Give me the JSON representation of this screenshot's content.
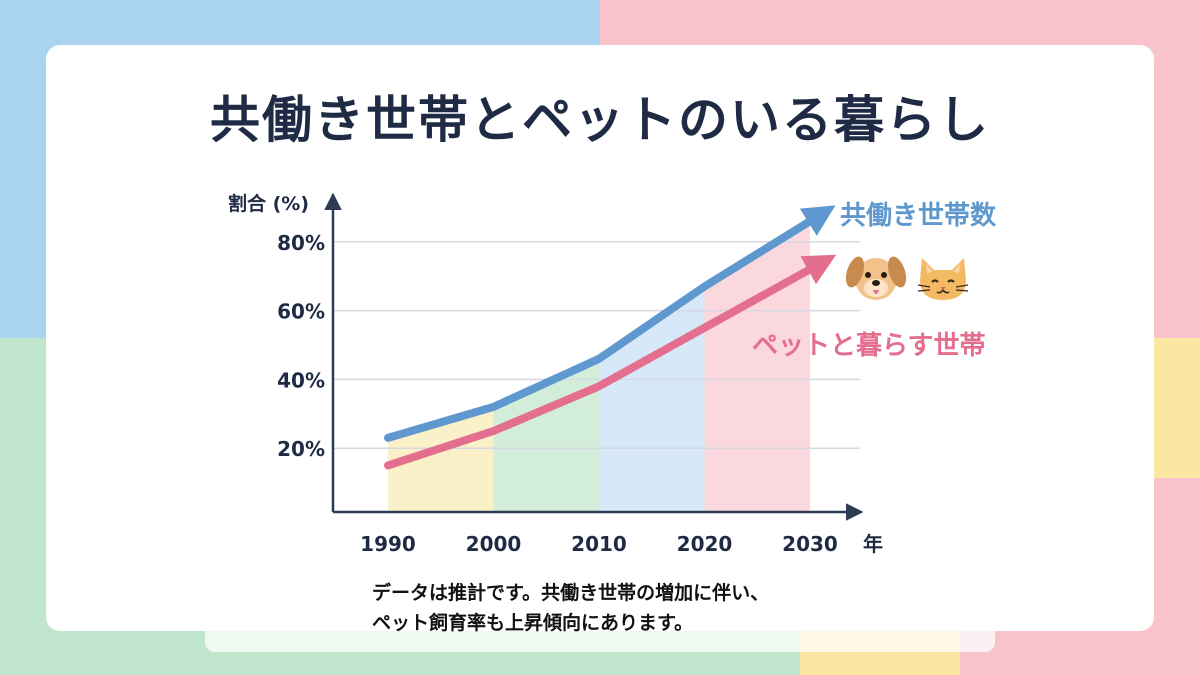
{
  "title": "共働き世帯とペットのいる暮らし",
  "note": {
    "line1": "データは推計です。共働き世帯の増加に伴い、",
    "line2": "ペット飼育率も上昇傾向にあります。"
  },
  "icons": [
    "dog-icon",
    "cat-icon"
  ],
  "colors": {
    "dual_income": "#5e98cf",
    "pet": "#e46e8e",
    "band_1990": "#fbf0c2",
    "band_2000": "#cdebd6",
    "band_2010": "#d3e6f7",
    "band_2020": "#fbd3da",
    "text": "#1f2a44"
  },
  "chart_data": {
    "type": "line",
    "ylabel": "割合 (%)",
    "xlabel": "年",
    "x": [
      1990,
      2000,
      2010,
      2020,
      2030
    ],
    "xticks": [
      "1990",
      "2000",
      "2010",
      "2020",
      "2030"
    ],
    "yticks": [
      "20%",
      "40%",
      "60%",
      "80%"
    ],
    "ylim": [
      0,
      85
    ],
    "grid": true,
    "series": [
      {
        "name": "共働き世帯数",
        "values": [
          23,
          32,
          46,
          67,
          86
        ]
      },
      {
        "name": "ペットと暮らす世帯",
        "values": [
          15,
          25,
          38,
          55,
          72
        ]
      }
    ]
  }
}
